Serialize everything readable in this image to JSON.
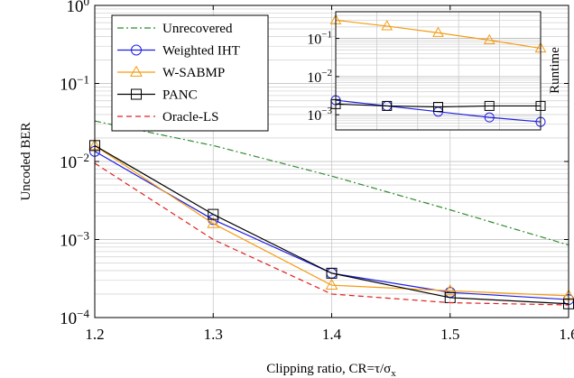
{
  "chart_data": [
    {
      "type": "line",
      "xlabel": "Clipping ratio, CR=τ/σ",
      "xlabel_sub": "x",
      "ylabel": "Uncoded BER",
      "x_scale": "linear",
      "y_scale": "log",
      "xlim": [
        1.2,
        1.6
      ],
      "ylim": [
        0.0001,
        1
      ],
      "x_ticks": [
        1.2,
        1.3,
        1.4,
        1.5,
        1.6
      ],
      "x_tick_labels": [
        "1.2",
        "1.3",
        "1.4",
        "1.5",
        "1.6"
      ],
      "y_tick_labels": [
        {
          "base": "10",
          "exp": "0",
          "value": 1
        },
        {
          "base": "10",
          "exp": "−1",
          "value": 0.1
        },
        {
          "base": "10",
          "exp": "−2",
          "value": 0.01
        },
        {
          "base": "10",
          "exp": "−3",
          "value": 0.001
        },
        {
          "base": "10",
          "exp": "−4",
          "value": 0.0001
        }
      ],
      "grid": true,
      "legend_position": "top-left",
      "series": [
        {
          "name": "Unrecovered",
          "color": "#2e8b2e",
          "dash": "dashdot",
          "marker": "none",
          "x": [
            1.2,
            1.3,
            1.4,
            1.5,
            1.6
          ],
          "y": [
            0.033,
            0.016,
            0.0065,
            0.0024,
            0.00085
          ]
        },
        {
          "name": "Weighted IHT",
          "color": "#1f1fe0",
          "dash": "solid",
          "marker": "circle",
          "x": [
            1.2,
            1.3,
            1.4,
            1.5,
            1.6
          ],
          "y": [
            0.0135,
            0.0018,
            0.00037,
            0.00021,
            0.00017
          ]
        },
        {
          "name": "W-SABMP",
          "color": "#f39c12",
          "dash": "solid",
          "marker": "triangle",
          "x": [
            1.2,
            1.3,
            1.4,
            1.5,
            1.6
          ],
          "y": [
            0.016,
            0.0016,
            0.00026,
            0.00022,
            0.00019
          ]
        },
        {
          "name": "PANC",
          "color": "#000000",
          "dash": "solid",
          "marker": "square",
          "x": [
            1.2,
            1.3,
            1.4,
            1.5,
            1.6
          ],
          "y": [
            0.016,
            0.0021,
            0.00037,
            0.00018,
            0.00015
          ]
        },
        {
          "name": "Oracle-LS",
          "color": "#e02020",
          "dash": "dashed",
          "marker": "none",
          "x": [
            1.2,
            1.3,
            1.4,
            1.5,
            1.6
          ],
          "y": [
            0.0095,
            0.001,
            0.0002,
            0.000155,
            0.000145
          ]
        }
      ]
    },
    {
      "type": "line",
      "ylabel": "Runtime",
      "y_scale": "log",
      "ylim": [
        0.0004,
        0.5
      ],
      "y_tick_labels": [
        {
          "base": "10",
          "exp": "−1",
          "value": 0.1
        },
        {
          "base": "10",
          "exp": "−2",
          "value": 0.01
        },
        {
          "base": "10",
          "exp": "−3",
          "value": 0.001
        }
      ],
      "xlim": [
        1.2,
        1.6
      ],
      "grid": true,
      "series": [
        {
          "name": "Weighted IHT",
          "color": "#1f1fe0",
          "marker": "circle",
          "x": [
            1.2,
            1.3,
            1.4,
            1.5,
            1.6
          ],
          "y": [
            0.0024,
            0.0017,
            0.0012,
            0.00085,
            0.00065
          ]
        },
        {
          "name": "W-SABMP",
          "color": "#f39c12",
          "marker": "triangle",
          "x": [
            1.2,
            1.3,
            1.4,
            1.5,
            1.6
          ],
          "y": [
            0.3,
            0.21,
            0.14,
            0.09,
            0.055
          ]
        },
        {
          "name": "PANC",
          "color": "#000000",
          "marker": "square",
          "x": [
            1.2,
            1.3,
            1.4,
            1.5,
            1.6
          ],
          "y": [
            0.0019,
            0.0017,
            0.0016,
            0.0017,
            0.0017
          ]
        }
      ]
    }
  ]
}
